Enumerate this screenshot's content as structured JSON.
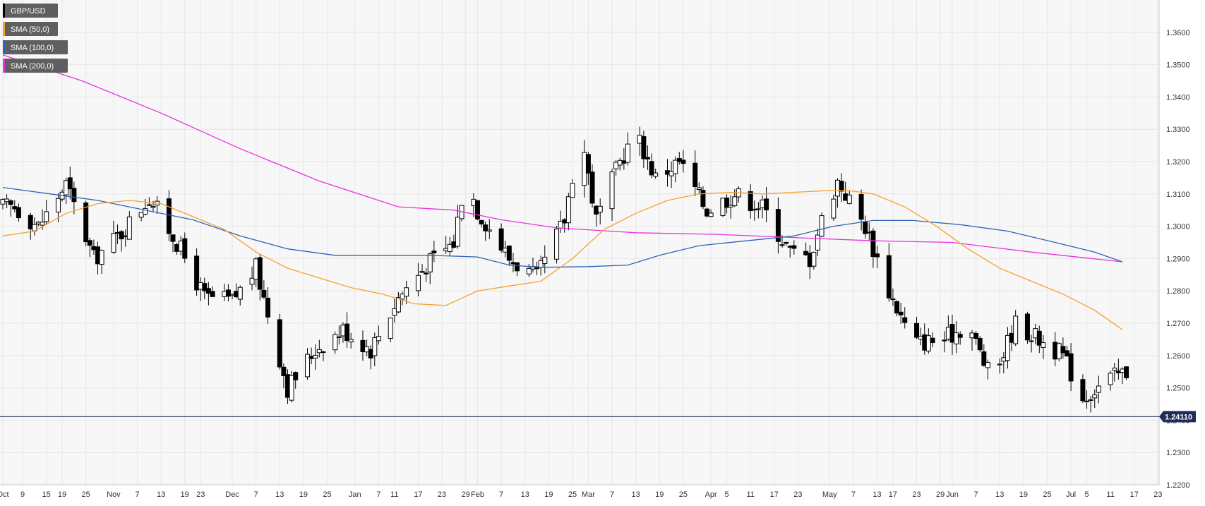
{
  "colors": {
    "plot_background": "#f7f7f7",
    "grid": "#e6e6e6",
    "candle_up_fill": "#ffffff",
    "candle_down_fill": "#000000",
    "candle_outline": "#000000",
    "sma50": "#f5a030",
    "sma100": "#2e63b8",
    "sma200": "#e830e0",
    "legend_bg": "#5f5f5f",
    "legend_text": "#ffffff",
    "price_line": "#1f2d5a",
    "price_tag_bg": "#1f2d5a",
    "axis_text": "#333333"
  },
  "chart_data": {
    "type": "candlestick",
    "symbol": "GBP/USD",
    "timeframe": "daily",
    "grid": true,
    "legend_placement": "top-left",
    "ylim": [
      1.22,
      1.37
    ],
    "y_ticks": [
      "1.2200",
      "1.2300",
      "1.2400",
      "1.2500",
      "1.2600",
      "1.2700",
      "1.2800",
      "1.2900",
      "1.3000",
      "1.3100",
      "1.3200",
      "1.3300",
      "1.3400",
      "1.3500",
      "1.3600"
    ],
    "x_ticks": [
      {
        "label": "Oct",
        "day": 0
      },
      {
        "label": "9",
        "day": 5
      },
      {
        "label": "15",
        "day": 11
      },
      {
        "label": "19",
        "day": 15
      },
      {
        "label": "25",
        "day": 21
      },
      {
        "label": "Nov",
        "day": 28
      },
      {
        "label": "7",
        "day": 34
      },
      {
        "label": "13",
        "day": 40
      },
      {
        "label": "19",
        "day": 46
      },
      {
        "label": "23",
        "day": 50
      },
      {
        "label": "Dec",
        "day": 58
      },
      {
        "label": "7",
        "day": 64
      },
      {
        "label": "13",
        "day": 70
      },
      {
        "label": "19",
        "day": 76
      },
      {
        "label": "25",
        "day": 82
      },
      {
        "label": "Jan",
        "day": 89
      },
      {
        "label": "7",
        "day": 95
      },
      {
        "label": "11",
        "day": 99
      },
      {
        "label": "17",
        "day": 105
      },
      {
        "label": "23",
        "day": 111
      },
      {
        "label": "29",
        "day": 117
      },
      {
        "label": "Feb",
        "day": 120
      },
      {
        "label": "7",
        "day": 126
      },
      {
        "label": "13",
        "day": 132
      },
      {
        "label": "19",
        "day": 138
      },
      {
        "label": "25",
        "day": 144
      },
      {
        "label": "Mar",
        "day": 148
      },
      {
        "label": "7",
        "day": 154
      },
      {
        "label": "13",
        "day": 160
      },
      {
        "label": "19",
        "day": 166
      },
      {
        "label": "25",
        "day": 172
      },
      {
        "label": "Apr",
        "day": 179
      },
      {
        "label": "5",
        "day": 183
      },
      {
        "label": "11",
        "day": 189
      },
      {
        "label": "17",
        "day": 195
      },
      {
        "label": "23",
        "day": 201
      },
      {
        "label": "May",
        "day": 209
      },
      {
        "label": "7",
        "day": 215
      },
      {
        "label": "13",
        "day": 221
      },
      {
        "label": "17",
        "day": 225
      },
      {
        "label": "23",
        "day": 231
      },
      {
        "label": "29",
        "day": 237
      },
      {
        "label": "Jun",
        "day": 240
      },
      {
        "label": "7",
        "day": 246
      },
      {
        "label": "13",
        "day": 252
      },
      {
        "label": "19",
        "day": 258
      },
      {
        "label": "25",
        "day": 264
      },
      {
        "label": "Jul",
        "day": 270
      },
      {
        "label": "5",
        "day": 274
      },
      {
        "label": "11",
        "day": 280
      },
      {
        "label": "17",
        "day": 286
      },
      {
        "label": "23",
        "day": 292
      }
    ],
    "xlim_days": [
      0,
      293
    ],
    "candles_anchor_days": [
      3,
      9,
      16,
      23,
      30,
      37,
      44,
      51,
      58,
      64,
      72,
      79,
      86,
      93,
      100,
      107,
      114,
      117,
      120,
      128,
      135,
      142,
      146,
      150,
      156,
      160,
      165,
      171,
      178,
      185,
      192,
      199,
      204,
      207,
      211,
      218,
      224,
      230,
      238,
      244,
      250,
      256,
      262,
      268,
      273,
      280,
      284,
      286
    ],
    "candles_anchor_close": [
      1.306,
      1.3,
      1.313,
      1.29,
      1.298,
      1.309,
      1.295,
      1.278,
      1.277,
      1.287,
      1.25,
      1.262,
      1.268,
      1.262,
      1.278,
      1.288,
      1.295,
      1.316,
      1.305,
      1.29,
      1.284,
      1.302,
      1.33,
      1.302,
      1.32,
      1.329,
      1.315,
      1.32,
      1.305,
      1.31,
      1.306,
      1.292,
      1.29,
      1.302,
      1.314,
      1.3,
      1.28,
      1.264,
      1.265,
      1.27,
      1.252,
      1.27,
      1.265,
      1.26,
      1.247,
      1.253,
      1.255,
      1.2411
    ],
    "sma50_points": [
      [
        0,
        1.297
      ],
      [
        8,
        1.2985
      ],
      [
        16,
        1.304
      ],
      [
        24,
        1.307
      ],
      [
        32,
        1.308
      ],
      [
        40,
        1.307
      ],
      [
        48,
        1.303
      ],
      [
        56,
        1.299
      ],
      [
        64,
        1.292
      ],
      [
        72,
        1.287
      ],
      [
        80,
        1.284
      ],
      [
        88,
        1.281
      ],
      [
        96,
        1.279
      ],
      [
        104,
        1.276
      ],
      [
        112,
        1.2755
      ],
      [
        120,
        1.28
      ],
      [
        128,
        1.2815
      ],
      [
        136,
        1.283
      ],
      [
        144,
        1.29
      ],
      [
        152,
        1.299
      ],
      [
        160,
        1.304
      ],
      [
        168,
        1.308
      ],
      [
        176,
        1.31
      ],
      [
        184,
        1.3105
      ],
      [
        192,
        1.31
      ],
      [
        200,
        1.3105
      ],
      [
        208,
        1.311
      ],
      [
        214,
        1.311
      ],
      [
        220,
        1.31
      ],
      [
        228,
        1.306
      ],
      [
        236,
        1.3
      ],
      [
        244,
        1.293
      ],
      [
        252,
        1.287
      ],
      [
        260,
        1.283
      ],
      [
        268,
        1.279
      ],
      [
        276,
        1.274
      ],
      [
        283,
        1.268
      ]
    ],
    "sma100_points": [
      [
        0,
        1.312
      ],
      [
        12,
        1.31
      ],
      [
        24,
        1.308
      ],
      [
        36,
        1.305
      ],
      [
        48,
        1.302
      ],
      [
        60,
        1.297
      ],
      [
        72,
        1.293
      ],
      [
        84,
        1.291
      ],
      [
        96,
        1.291
      ],
      [
        108,
        1.291
      ],
      [
        120,
        1.2905
      ],
      [
        128,
        1.288
      ],
      [
        136,
        1.2873
      ],
      [
        148,
        1.2875
      ],
      [
        158,
        1.288
      ],
      [
        166,
        1.291
      ],
      [
        176,
        1.294
      ],
      [
        188,
        1.2955
      ],
      [
        200,
        1.297
      ],
      [
        210,
        1.3
      ],
      [
        220,
        1.3018
      ],
      [
        230,
        1.3018
      ],
      [
        242,
        1.3005
      ],
      [
        254,
        1.2985
      ],
      [
        266,
        1.295
      ],
      [
        276,
        1.292
      ],
      [
        283,
        1.289
      ]
    ],
    "sma200_points": [
      [
        0,
        1.353
      ],
      [
        20,
        1.345
      ],
      [
        40,
        1.335
      ],
      [
        60,
        1.324
      ],
      [
        80,
        1.314
      ],
      [
        100,
        1.306
      ],
      [
        114,
        1.305
      ],
      [
        126,
        1.302
      ],
      [
        140,
        1.2995
      ],
      [
        160,
        1.298
      ],
      [
        180,
        1.2975
      ],
      [
        200,
        1.2965
      ],
      [
        220,
        1.2955
      ],
      [
        240,
        1.295
      ],
      [
        260,
        1.292
      ],
      [
        283,
        1.289
      ]
    ],
    "series": [
      {
        "name": "GBP/USD"
      },
      {
        "name": "SMA (50,0)"
      },
      {
        "name": "SMA (100,0)"
      },
      {
        "name": "SMA (200,0)"
      }
    ],
    "current_price": 1.2411,
    "current_price_label": "1.24110"
  }
}
